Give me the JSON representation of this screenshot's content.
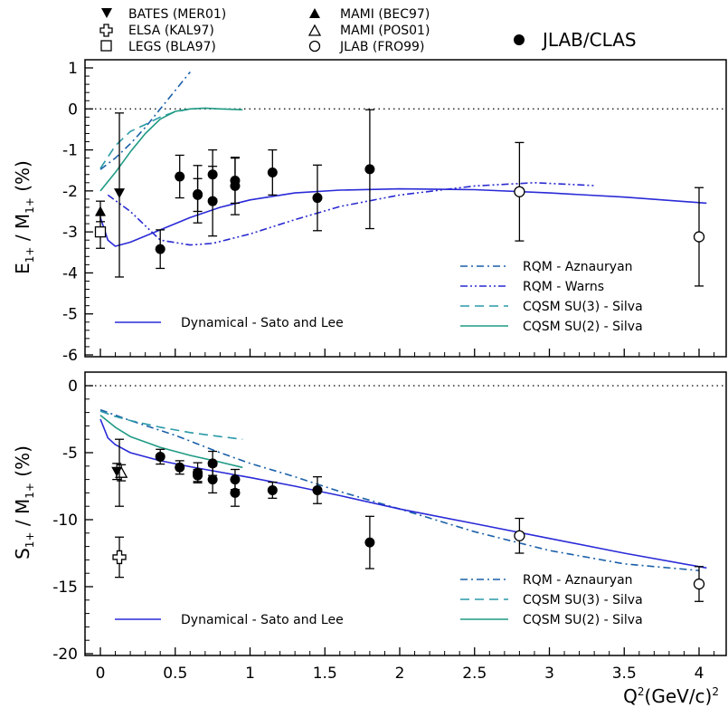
{
  "data_legend": {
    "items": [
      {
        "symbol": "triangle-down-filled",
        "label": "BATES (MER01)"
      },
      {
        "symbol": "cross-open",
        "label": "ELSA (KAL97)"
      },
      {
        "symbol": "square-open",
        "label": "LEGS (BLA97)"
      },
      {
        "symbol": "triangle-up-filled",
        "label": "MAMI (BEC97)"
      },
      {
        "symbol": "triangle-up-open",
        "label": "MAMI (POS01)"
      },
      {
        "symbol": "circle-open",
        "label": "JLAB (FRO99)"
      },
      {
        "symbol": "circle-filled",
        "label": "JLAB/CLAS"
      }
    ]
  },
  "colors": {
    "rqm_aznauryan": "#1a5fa8",
    "rqm_warns": "#2a2ad0",
    "cqsm_su3": "#2a9aa8",
    "cqsm_su2": "#1f9a84",
    "sato_lee": "#2a2ad8",
    "data": "#000000"
  },
  "chart_data": [
    {
      "type": "scatter",
      "panel": "top",
      "ylabel_main": "E",
      "ylabel_main_sub": "1+",
      "ylabel_sep": " / M",
      "ylabel_den_sub": "1+",
      "ylabel_unit": " (%)",
      "xlim": [
        -0.1,
        4.2
      ],
      "ylim": [
        -6,
        1
      ],
      "yticks": [
        "1",
        "0",
        "-1",
        "-2",
        "-3",
        "-4",
        "-5",
        "-6"
      ],
      "zero_line": "dotted",
      "datasets": [
        {
          "name": "JLAB/CLAS",
          "symbol": "circle-filled",
          "points": [
            {
              "x": 0.4,
              "y": -3.42,
              "err": 0.47
            },
            {
              "x": 0.53,
              "y": -1.65,
              "err": 0.52
            },
            {
              "x": 0.65,
              "y": -2.08,
              "err": 0.7
            },
            {
              "x": 0.65,
              "y": -2.1,
              "err": 0.4
            },
            {
              "x": 0.75,
              "y": -1.6,
              "err": 0.6
            },
            {
              "x": 0.75,
              "y": -2.25,
              "err": 0.85
            },
            {
              "x": 0.9,
              "y": -1.75,
              "err": 0.55
            },
            {
              "x": 0.9,
              "y": -1.88,
              "err": 0.7
            },
            {
              "x": 1.15,
              "y": -1.55,
              "err": 0.55
            },
            {
              "x": 1.45,
              "y": -2.17,
              "err": 0.8
            },
            {
              "x": 1.8,
              "y": -1.47,
              "err": 1.45
            }
          ]
        },
        {
          "name": "JLAB (FRO99)",
          "symbol": "circle-open",
          "points": [
            {
              "x": 2.8,
              "y": -2.02,
              "err": 1.2
            },
            {
              "x": 4.0,
              "y": -3.12,
              "err": 1.2
            }
          ]
        },
        {
          "name": "LEGS (BLA97)",
          "symbol": "square-open",
          "points": [
            {
              "x": 0.0,
              "y": -3.0,
              "err": 0.4
            }
          ]
        },
        {
          "name": "MAMI (BEC97)",
          "symbol": "triangle-up-filled",
          "points": [
            {
              "x": 0.0,
              "y": -2.5,
              "err": 0.25
            }
          ]
        },
        {
          "name": "BATES (MER01)",
          "symbol": "triangle-down-filled",
          "points": [
            {
              "x": 0.127,
              "y": -2.05,
              "err": 0.0
            }
          ]
        },
        {
          "name": "",
          "symbol": "none",
          "points": [
            {
              "x": 0.127,
              "y": -2.1,
              "err": 2.0
            }
          ]
        }
      ],
      "curves": [
        {
          "name": "RQM - Aznauryan",
          "style": "dashdot",
          "color_key": "rqm_aznauryan",
          "x": [
            0,
            0.1,
            0.2,
            0.3,
            0.4,
            0.5,
            0.6
          ],
          "y": [
            -1.48,
            -1.2,
            -0.85,
            -0.45,
            0.0,
            0.45,
            0.9
          ]
        },
        {
          "name": "RQM - Warns",
          "style": "dashdotdot",
          "color_key": "rqm_warns",
          "x": [
            0.05,
            0.2,
            0.4,
            0.6,
            0.75,
            1.0,
            1.3,
            1.6,
            2.0,
            2.5,
            2.9,
            3.3
          ],
          "y": [
            -2.1,
            -2.5,
            -3.2,
            -3.32,
            -3.28,
            -3.05,
            -2.7,
            -2.38,
            -2.1,
            -1.88,
            -1.8,
            -1.87
          ]
        },
        {
          "name": "CQSM SU(3) - Silva",
          "style": "dashed",
          "color_key": "cqsm_su3",
          "x": [
            0,
            0.1,
            0.2,
            0.3,
            0.4,
            0.5,
            0.6
          ],
          "y": [
            -1.45,
            -0.9,
            -0.55,
            -0.38,
            -0.2,
            -0.07,
            0.0
          ]
        },
        {
          "name": "CQSM SU(2) - Silva",
          "style": "solid",
          "color_key": "cqsm_su2",
          "x": [
            0,
            0.1,
            0.2,
            0.3,
            0.4,
            0.5,
            0.6,
            0.7,
            0.8,
            0.95
          ],
          "y": [
            -2.0,
            -1.55,
            -1.05,
            -0.6,
            -0.25,
            -0.06,
            0.0,
            0.02,
            0.0,
            -0.02
          ]
        },
        {
          "name": "Dynamical - Sato and Lee",
          "style": "solid",
          "color_key": "sato_lee",
          "x": [
            0.0,
            0.05,
            0.1,
            0.2,
            0.4,
            0.6,
            0.8,
            1.0,
            1.3,
            1.6,
            2.0,
            2.5,
            3.0,
            3.5,
            4.05
          ],
          "y": [
            -2.65,
            -3.2,
            -3.35,
            -3.25,
            -2.95,
            -2.65,
            -2.4,
            -2.22,
            -2.05,
            -1.98,
            -1.95,
            -1.97,
            -2.05,
            -2.15,
            -2.3
          ]
        }
      ],
      "legend": {
        "items": [
          "RQM - Aznauryan",
          "RQM - Warns",
          "CQSM SU(3) - Silva",
          "CQSM SU(2) - Silva"
        ],
        "placement": "bottom-right"
      },
      "legend_extra": {
        "items": [
          "Dynamical - Sato and Lee"
        ],
        "placement": "bottom-left"
      }
    },
    {
      "type": "scatter",
      "panel": "bottom",
      "ylabel_main": "S",
      "ylabel_main_sub": "1+",
      "ylabel_sep": " / M",
      "ylabel_den_sub": "1+",
      "ylabel_unit": " (%)",
      "xlabel": "Q",
      "xlabel_sup": "2",
      "xlabel_rest": "(GeV/c)",
      "xlabel_sup2": "2",
      "xlim": [
        -0.1,
        4.2
      ],
      "ylim": [
        -20,
        1.5
      ],
      "xticks": [
        "0",
        "0.5",
        "1",
        "1.5",
        "2",
        "2.5",
        "3",
        "3.5",
        "4"
      ],
      "yticks": [
        "0",
        "-5",
        "-10",
        "-15",
        "-20"
      ],
      "zero_line": "dotted",
      "datasets": [
        {
          "name": "JLAB/CLAS",
          "symbol": "circle-filled",
          "points": [
            {
              "x": 0.4,
              "y": -5.3,
              "err": 0.55
            },
            {
              "x": 0.53,
              "y": -6.1,
              "err": 0.5
            },
            {
              "x": 0.65,
              "y": -6.5,
              "err": 0.75
            },
            {
              "x": 0.65,
              "y": -6.7,
              "err": 0.45
            },
            {
              "x": 0.75,
              "y": -5.8,
              "err": 0.9
            },
            {
              "x": 0.75,
              "y": -7.0,
              "err": 1.0
            },
            {
              "x": 0.9,
              "y": -7.0,
              "err": 0.75
            },
            {
              "x": 0.9,
              "y": -8.0,
              "err": 1.0
            },
            {
              "x": 1.15,
              "y": -7.8,
              "err": 0.6
            },
            {
              "x": 1.45,
              "y": -7.8,
              "err": 1.0
            },
            {
              "x": 1.8,
              "y": -11.7,
              "err": 1.95
            }
          ]
        },
        {
          "name": "JLAB (FRO99)",
          "symbol": "circle-open",
          "points": [
            {
              "x": 2.8,
              "y": -11.2,
              "err": 1.3
            },
            {
              "x": 4.0,
              "y": -14.8,
              "err": 1.3
            }
          ]
        },
        {
          "name": "ELSA (KAL97)",
          "symbol": "cross-open",
          "points": [
            {
              "x": 0.127,
              "y": -12.8,
              "err": 1.5
            }
          ]
        },
        {
          "name": "BATES (MER01)",
          "symbol": "triangle-down-filled",
          "points": [
            {
              "x": 0.11,
              "y": -6.4,
              "err": 0.6
            }
          ]
        },
        {
          "name": "MAMI (POS01)",
          "symbol": "triangle-up-open",
          "points": [
            {
              "x": 0.14,
              "y": -6.5,
              "err": 0.6
            }
          ]
        },
        {
          "name": "",
          "symbol": "none",
          "points": [
            {
              "x": 0.127,
              "y": -6.5,
              "err": 2.5
            }
          ]
        }
      ],
      "curves": [
        {
          "name": "RQM - Aznauryan",
          "style": "dashdot",
          "color_key": "rqm_aznauryan",
          "x": [
            0.0,
            0.2,
            0.5,
            0.8,
            1.0,
            1.3,
            1.6,
            2.0,
            2.5,
            3.0,
            3.5,
            4.0
          ],
          "y": [
            -1.8,
            -2.6,
            -3.7,
            -5.0,
            -5.8,
            -6.8,
            -7.9,
            -9.2,
            -10.9,
            -12.3,
            -13.3,
            -13.8
          ]
        },
        {
          "name": "CQSM SU(3) - Silva",
          "style": "dashed",
          "color_key": "cqsm_su3",
          "x": [
            0.0,
            0.1,
            0.2,
            0.4,
            0.6,
            0.8,
            0.95
          ],
          "y": [
            -1.9,
            -2.3,
            -2.6,
            -3.1,
            -3.5,
            -3.8,
            -4.0
          ]
        },
        {
          "name": "CQSM SU(2) - Silva",
          "style": "solid",
          "color_key": "cqsm_su2",
          "x": [
            0.0,
            0.1,
            0.2,
            0.4,
            0.6,
            0.8,
            0.95
          ],
          "y": [
            -2.2,
            -3.1,
            -3.8,
            -4.6,
            -5.2,
            -5.7,
            -6.1
          ]
        },
        {
          "name": "Dynamical - Sato and Lee",
          "style": "solid",
          "color_key": "sato_lee",
          "x": [
            0.0,
            0.05,
            0.1,
            0.2,
            0.4,
            0.6,
            0.8,
            1.0,
            1.3,
            1.6,
            2.0,
            2.5,
            3.0,
            3.5,
            4.05
          ],
          "y": [
            -2.5,
            -3.9,
            -4.4,
            -5.0,
            -5.6,
            -6.05,
            -6.45,
            -6.85,
            -7.5,
            -8.2,
            -9.2,
            -10.3,
            -11.4,
            -12.5,
            -13.6
          ]
        }
      ],
      "legend": {
        "items": [
          "RQM - Aznauryan",
          "CQSM SU(3) - Silva",
          "CQSM SU(2) - Silva"
        ],
        "placement": "bottom-right"
      },
      "legend_extra": {
        "items": [
          "Dynamical - Sato and Lee"
        ],
        "placement": "bottom-left"
      }
    }
  ]
}
